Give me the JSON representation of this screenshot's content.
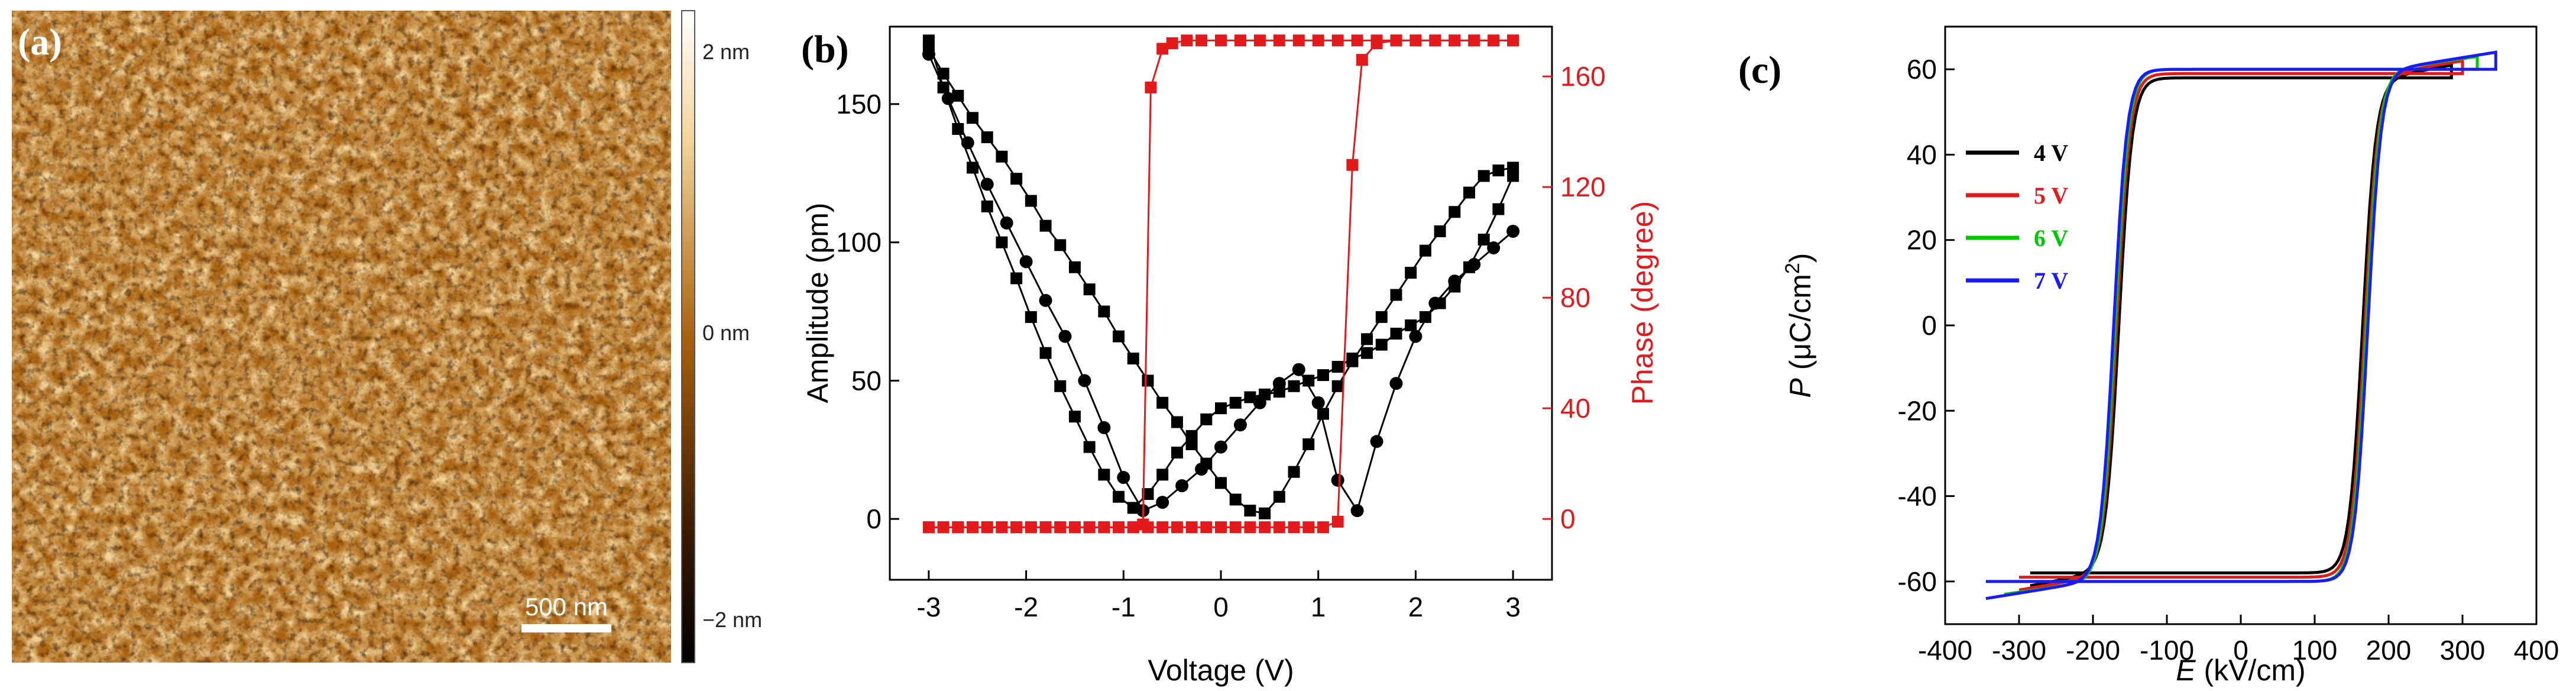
{
  "panels": {
    "a": {
      "label": "(a)",
      "scale_bar": "500 nm",
      "colorbar": {
        "max_label": "2 nm",
        "mid_label": "0 nm",
        "min_label": "−2 nm"
      },
      "colors": {
        "dark": "#3a1a00",
        "mid": "#a8620f",
        "light": "#f2d49a"
      }
    },
    "b": {
      "label": "(b)"
    },
    "c": {
      "label": "(c)"
    }
  },
  "chart_data": [
    {
      "id": "b",
      "type": "line",
      "title": "",
      "xlabel": "Voltage (V)",
      "ylabel": "Amplitude (pm)",
      "y2label": "Phase (degree)",
      "xlim": [
        -3.4,
        3.4
      ],
      "ylim": [
        -22,
        178
      ],
      "y2lim": [
        -22,
        178
      ],
      "xticks": [
        -3,
        -2,
        -1,
        0,
        1,
        2,
        3
      ],
      "yticks": [
        0,
        50,
        100,
        150
      ],
      "y2ticks": [
        0,
        40,
        80,
        120,
        160
      ],
      "grid": false,
      "series": [
        {
          "name": "Amplitude",
          "axis": "left",
          "color": "#000000",
          "marker": "square",
          "x": [
            -3.0,
            -2.85,
            -2.7,
            -2.55,
            -2.4,
            -2.25,
            -2.1,
            -1.95,
            -1.8,
            -1.65,
            -1.5,
            -1.35,
            -1.2,
            -1.05,
            -0.9,
            -0.75,
            -0.6,
            -0.45,
            -0.3,
            -0.15,
            0.0,
            0.15,
            0.3,
            0.45,
            0.6,
            0.75,
            0.9,
            1.05,
            1.2,
            1.35,
            1.5,
            1.65,
            1.8,
            1.95,
            2.1,
            2.25,
            2.4,
            2.55,
            2.7,
            2.85,
            3.0
          ],
          "y": [
            170,
            161,
            153,
            145,
            138,
            131,
            123,
            115,
            106,
            99,
            91,
            83,
            75,
            66,
            58,
            50,
            42,
            35,
            27,
            20,
            13,
            7,
            3,
            2,
            8,
            17,
            27,
            38,
            48,
            57,
            65,
            73,
            81,
            89,
            97,
            104,
            111,
            118,
            124,
            126,
            127
          ]
        },
        {
          "name": "Amplitude",
          "axis": "left",
          "color": "#000000",
          "marker": "square",
          "x": [
            3.0,
            2.85,
            2.7,
            2.55,
            2.4,
            2.25,
            2.1,
            1.95,
            1.8,
            1.65,
            1.5,
            1.35,
            1.2,
            1.05,
            0.9,
            0.75,
            0.6,
            0.45,
            0.3,
            0.15,
            0.0,
            -0.15,
            -0.3,
            -0.45,
            -0.6,
            -0.75,
            -0.9,
            -1.05,
            -1.2,
            -1.35,
            -1.5,
            -1.65,
            -1.8,
            -1.95,
            -2.1,
            -2.25,
            -2.4,
            -2.55,
            -2.7,
            -2.85,
            -3.0
          ],
          "y": [
            124,
            112,
            101,
            91,
            84,
            78,
            73,
            70,
            67,
            63,
            60,
            58,
            55,
            52,
            50,
            48,
            46,
            45,
            44,
            42,
            40,
            36,
            30,
            24,
            16,
            9,
            4,
            8,
            16,
            26,
            37,
            48,
            60,
            73,
            87,
            100,
            113,
            127,
            141,
            156,
            173
          ]
        },
        {
          "name": "Amplitude",
          "axis": "left",
          "color": "#000000",
          "marker": "circle",
          "x": [
            -3.0,
            -2.8,
            -2.6,
            -2.4,
            -2.2,
            -2.0,
            -1.8,
            -1.6,
            -1.4,
            -1.2,
            -1.0,
            -0.8,
            -0.6,
            -0.4,
            -0.2,
            0.0,
            0.2,
            0.4,
            0.6,
            0.8,
            1.0,
            1.2,
            1.4,
            1.6,
            1.8,
            2.0,
            2.2,
            2.4,
            2.6,
            2.8,
            3.0
          ],
          "y": [
            168,
            152,
            136,
            121,
            107,
            93,
            79,
            66,
            50,
            33,
            15,
            3,
            6,
            12,
            18,
            26,
            34,
            42,
            49,
            54,
            42,
            14,
            3,
            28,
            49,
            66,
            78,
            86,
            92,
            98,
            104
          ]
        },
        {
          "name": "Phase",
          "axis": "right",
          "color": "#e31a1c",
          "marker": "square",
          "x": [
            -3.0,
            -2.85,
            -2.7,
            -2.55,
            -2.4,
            -2.25,
            -2.1,
            -1.95,
            -1.8,
            -1.65,
            -1.5,
            -1.35,
            -1.2,
            -1.05,
            -0.9,
            -0.8,
            -0.72,
            -0.6,
            -0.5,
            -0.35,
            -0.2,
            0.0,
            0.2,
            0.4,
            0.6,
            0.8,
            1.0,
            1.2,
            1.4,
            1.6,
            1.8,
            2.0,
            2.2,
            2.4,
            2.6,
            2.8,
            3.0
          ],
          "y": [
            -3,
            -3,
            -3,
            -3,
            -3,
            -3,
            -3,
            -3,
            -3,
            -3,
            -3,
            -3,
            -3,
            -3,
            -3,
            -2,
            156,
            170,
            172,
            173,
            173,
            173,
            173,
            173,
            173,
            173,
            173,
            173,
            173,
            173,
            173,
            173,
            173,
            173,
            173,
            173,
            173
          ]
        },
        {
          "name": "Phase",
          "axis": "right",
          "color": "#e31a1c",
          "marker": "square",
          "x": [
            3.0,
            2.8,
            2.6,
            2.4,
            2.2,
            2.0,
            1.8,
            1.6,
            1.45,
            1.35,
            1.2,
            1.05,
            0.9,
            0.75,
            0.6,
            0.45,
            0.3,
            0.15,
            0.0,
            -0.15,
            -0.3,
            -0.45,
            -0.6,
            -0.75,
            -0.9,
            -1.05,
            -1.2,
            -1.35,
            -1.5,
            -1.65,
            -1.8,
            -1.95,
            -2.1,
            -2.25,
            -2.4,
            -2.55,
            -2.7,
            -2.85,
            -3.0
          ],
          "y": [
            173,
            173,
            173,
            173,
            173,
            173,
            173,
            172,
            166,
            128,
            -1,
            -3,
            -3,
            -3,
            -3,
            -3,
            -3,
            -3,
            -3,
            -3,
            -3,
            -3,
            -3,
            -3,
            -3,
            -3,
            -3,
            -3,
            -3,
            -3,
            -3,
            -3,
            -3,
            -3,
            -3,
            -3,
            -3,
            -3,
            -3
          ]
        }
      ]
    },
    {
      "id": "c",
      "type": "line",
      "title": "",
      "xlabel_italic": "E",
      "xlabel_rest": " (kV/cm)",
      "ylabel_italic": "P",
      "ylabel_rest": " (μC/cm",
      "ylabel_sup": "2",
      "ylabel_end": ")",
      "xlim": [
        -400,
        400
      ],
      "ylim": [
        -70,
        70
      ],
      "xticks": [
        -400,
        -300,
        -200,
        -100,
        0,
        100,
        200,
        300,
        400
      ],
      "yticks": [
        -60,
        -40,
        -20,
        0,
        20,
        40,
        60
      ],
      "grid": false,
      "legend_position": "left-middle",
      "series": [
        {
          "name": "4 V",
          "color": "#000000",
          "emax": 285,
          "ec": 165,
          "pmax": 61,
          "pr": 58
        },
        {
          "name": "5 V",
          "color": "#e31a1c",
          "emax": 300,
          "ec": 168,
          "pmax": 62,
          "pr": 59
        },
        {
          "name": "6 V",
          "color": "#00c800",
          "emax": 320,
          "ec": 170,
          "pmax": 63,
          "pr": 60
        },
        {
          "name": "7 V",
          "color": "#1a1aff",
          "emax": 345,
          "ec": 172,
          "pmax": 64,
          "pr": 60
        }
      ]
    }
  ]
}
